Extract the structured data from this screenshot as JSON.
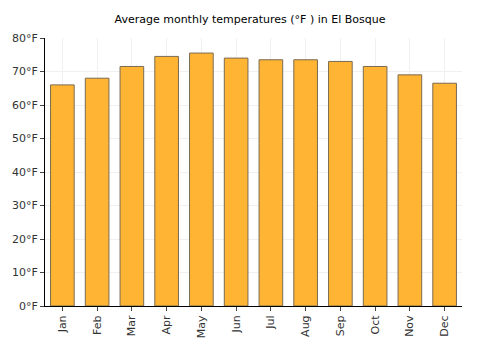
{
  "chart_data": {
    "type": "bar",
    "title": "Average monthly temperatures (°F ) in El Bosque",
    "categories": [
      "Jan",
      "Feb",
      "Mar",
      "Apr",
      "May",
      "Jun",
      "Jul",
      "Aug",
      "Sep",
      "Oct",
      "Nov",
      "Dec"
    ],
    "values": [
      66,
      68,
      71.5,
      74.5,
      75.5,
      74,
      73.5,
      73.5,
      73,
      71.5,
      69,
      66.5
    ],
    "color": "#ffb533",
    "ylim": [
      0,
      80
    ],
    "yticks": [
      {
        "value": 0,
        "label": "0°F"
      },
      {
        "value": 10,
        "label": "10°F"
      },
      {
        "value": 20,
        "label": "20°F"
      },
      {
        "value": 30,
        "label": "30°F"
      },
      {
        "value": 40,
        "label": "40°F"
      },
      {
        "value": 50,
        "label": "50°F"
      },
      {
        "value": 60,
        "label": "60°F"
      },
      {
        "value": 70,
        "label": "70°F"
      },
      {
        "value": 80,
        "label": "80°F"
      }
    ],
    "grid": true
  }
}
